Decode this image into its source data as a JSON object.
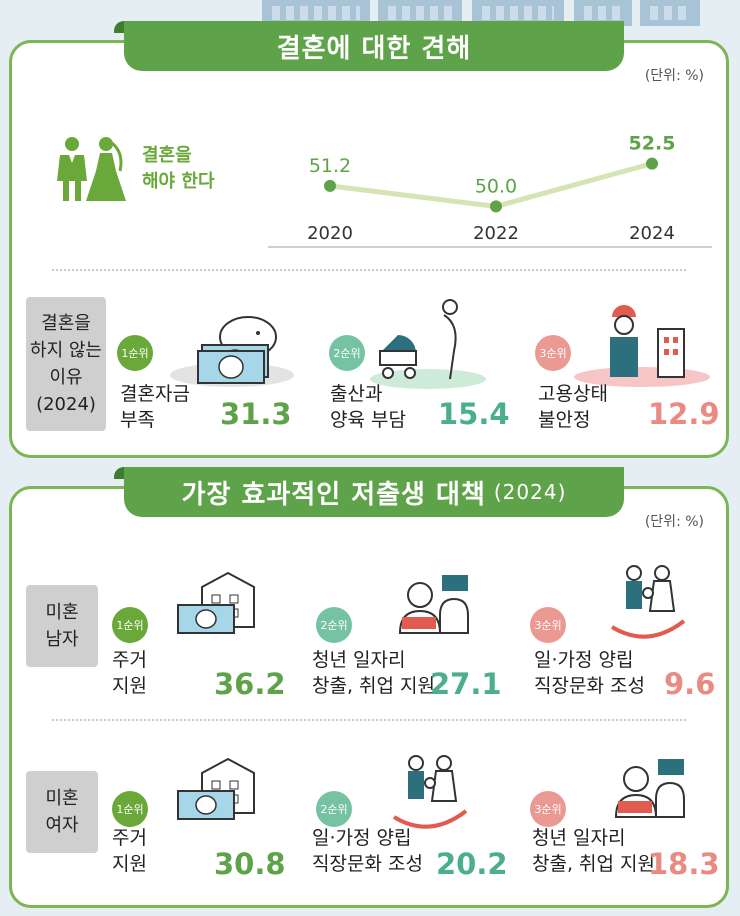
{
  "marriage_view": {
    "title": "결혼에 대한 견해",
    "unit": "(단위: %)",
    "series_label_line1": "결혼을",
    "series_label_line2": "해야 한다"
  },
  "reasons": {
    "heading_line1": "결혼을",
    "heading_line2": "하지 않는",
    "heading_line3": "이유",
    "heading_line4": "(2024)",
    "items": [
      {
        "rank": "1순위",
        "label": "결혼자금\n부족",
        "value": "31.3"
      },
      {
        "rank": "2순위",
        "label": "출산과\n양육 부담",
        "value": "15.4"
      },
      {
        "rank": "3순위",
        "label": "고용상태\n불안정",
        "value": "12.9"
      }
    ]
  },
  "policy": {
    "title": "가장 효과적인 저출생 대책",
    "title_year": "(2024)",
    "unit": "(단위: %)",
    "men": {
      "heading_line1": "미혼",
      "heading_line2": "남자",
      "items": [
        {
          "rank": "1순위",
          "label": "주거\n지원",
          "value": "36.2"
        },
        {
          "rank": "2순위",
          "label": "청년 일자리\n창출, 취업 지원",
          "value": "27.1"
        },
        {
          "rank": "3순위",
          "label": "일·가정 양립\n직장문화 조성",
          "value": "9.6"
        }
      ]
    },
    "women": {
      "heading_line1": "미혼",
      "heading_line2": "여자",
      "items": [
        {
          "rank": "1순위",
          "label": "주거\n지원",
          "value": "30.8"
        },
        {
          "rank": "2순위",
          "label": "일·가정 양립\n직장문화 조성",
          "value": "20.2"
        },
        {
          "rank": "3순위",
          "label": "청년 일자리\n창출, 취업 지원",
          "value": "18.3"
        }
      ]
    }
  },
  "chart_data": [
    {
      "type": "line",
      "x": [
        "2020",
        "2022",
        "2024"
      ],
      "series": [
        {
          "name": "결혼을 해야 한다",
          "values": [
            51.2,
            50.0,
            52.5
          ]
        }
      ],
      "value_labels": [
        "51.2",
        "50.0",
        "52.5"
      ],
      "ylim": [
        49.5,
        53
      ]
    },
    {
      "type": "bar",
      "categories": [
        "결혼자금 부족",
        "출산과 양육 부담",
        "고용상태 불안정"
      ],
      "values": [
        31.3,
        15.4,
        12.9
      ]
    },
    {
      "type": "bar",
      "series": [
        {
          "name": "미혼 남자",
          "categories": [
            "주거 지원",
            "청년 일자리 창출, 취업 지원",
            "일·가정 양립 직장문화 조성"
          ],
          "values": [
            36.2,
            27.1,
            9.6
          ]
        },
        {
          "name": "미혼 여자",
          "categories": [
            "주거 지원",
            "일·가정 양립 직장문화 조성",
            "청년 일자리 창출, 취업 지원"
          ],
          "values": [
            30.8,
            20.2,
            18.3
          ]
        }
      ]
    }
  ],
  "colors": {
    "green": "#5ea34a",
    "teal": "#4aae8f",
    "pink": "#e98a83",
    "line": "#d6e4b5"
  }
}
